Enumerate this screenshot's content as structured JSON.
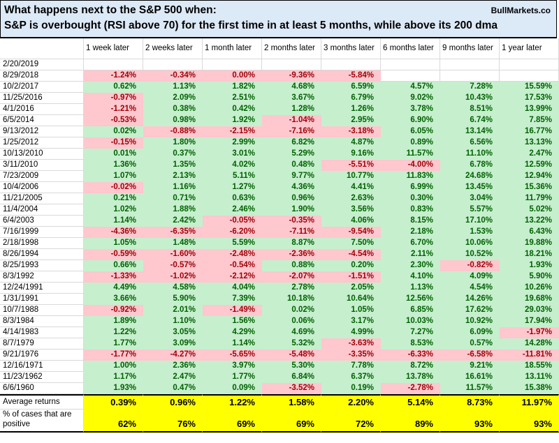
{
  "title": {
    "line1": "What happens next to the S&P 500 when:",
    "line2": "S&P is overbought (RSI above 70) for the first time in at least 5 months, while above its 200 dma",
    "brand": "BullMarkets.co"
  },
  "colors": {
    "positive_bg": "#C6EFCE",
    "positive_text": "#006100",
    "negative_bg": "#FFC7CE",
    "negative_text": "#9C0006",
    "summary_bg": "#FFFF00",
    "header_bg": "#DCE9F6",
    "gridline": "#D9D9D9",
    "border_black": "#000000"
  },
  "chart_data": {
    "type": "table",
    "title": "What happens next to the S&P 500 when:",
    "subtitle": "S&P is overbought (RSI above 70) for the first time in at least 5 months, while above its 200 dma",
    "source": "BullMarkets.co",
    "columns": [
      "1 week later",
      "2 weeks later",
      "1 month later",
      "2 months later",
      "3 months later",
      "6 months later",
      "9 months later",
      "1 year later"
    ],
    "rows": [
      {
        "date": "2/20/2019",
        "values": [
          "",
          "",
          "",
          "",
          "",
          "",
          "",
          ""
        ]
      },
      {
        "date": "8/29/2018",
        "values": [
          "-1.24%",
          "-0.34%",
          "0.00%",
          "-9.36%",
          "-5.84%",
          "",
          "",
          ""
        ]
      },
      {
        "date": "10/2/2017",
        "values": [
          "0.62%",
          "1.13%",
          "1.82%",
          "4.68%",
          "6.59%",
          "4.57%",
          "7.28%",
          "15.59%"
        ]
      },
      {
        "date": "11/25/2016",
        "values": [
          "-0.97%",
          "2.09%",
          "2.51%",
          "3.67%",
          "6.79%",
          "9.02%",
          "10.43%",
          "17.53%"
        ]
      },
      {
        "date": "4/1/2016",
        "values": [
          "-1.21%",
          "0.38%",
          "0.42%",
          "1.28%",
          "1.26%",
          "3.78%",
          "8.51%",
          "13.99%"
        ]
      },
      {
        "date": "6/5/2014",
        "values": [
          "-0.53%",
          "0.98%",
          "1.92%",
          "-1.04%",
          "2.95%",
          "6.90%",
          "6.74%",
          "7.85%"
        ]
      },
      {
        "date": "9/13/2012",
        "values": [
          "0.02%",
          "-0.88%",
          "-2.15%",
          "-7.16%",
          "-3.18%",
          "6.05%",
          "13.14%",
          "16.77%"
        ]
      },
      {
        "date": "1/25/2012",
        "values": [
          "-0.15%",
          "1.80%",
          "2.99%",
          "6.82%",
          "4.87%",
          "0.89%",
          "6.56%",
          "13.13%"
        ]
      },
      {
        "date": "10/13/2010",
        "values": [
          "0.01%",
          "0.37%",
          "3.01%",
          "5.29%",
          "9.16%",
          "11.57%",
          "11.10%",
          "2.47%"
        ]
      },
      {
        "date": "3/11/2010",
        "values": [
          "1.36%",
          "1.35%",
          "4.02%",
          "0.48%",
          "-5.51%",
          "-4.00%",
          "6.78%",
          "12.59%"
        ]
      },
      {
        "date": "7/23/2009",
        "values": [
          "1.07%",
          "2.13%",
          "5.11%",
          "9.77%",
          "10.77%",
          "11.83%",
          "24.68%",
          "12.94%"
        ]
      },
      {
        "date": "10/4/2006",
        "values": [
          "-0.02%",
          "1.16%",
          "1.27%",
          "4.36%",
          "4.41%",
          "6.99%",
          "13.45%",
          "15.36%"
        ]
      },
      {
        "date": "11/21/2005",
        "values": [
          "0.21%",
          "0.71%",
          "0.63%",
          "0.96%",
          "2.63%",
          "0.30%",
          "3.04%",
          "11.79%"
        ]
      },
      {
        "date": "11/4/2004",
        "values": [
          "1.02%",
          "1.88%",
          "2.46%",
          "1.90%",
          "3.56%",
          "0.83%",
          "5.57%",
          "5.02%"
        ]
      },
      {
        "date": "6/4/2003",
        "values": [
          "1.14%",
          "2.42%",
          "-0.05%",
          "-0.35%",
          "4.06%",
          "8.15%",
          "17.10%",
          "13.22%"
        ]
      },
      {
        "date": "7/16/1999",
        "values": [
          "-4.36%",
          "-6.35%",
          "-6.20%",
          "-7.11%",
          "-9.54%",
          "2.18%",
          "1.53%",
          "6.43%"
        ]
      },
      {
        "date": "2/18/1998",
        "values": [
          "1.05%",
          "1.48%",
          "5.59%",
          "8.87%",
          "7.50%",
          "6.70%",
          "10.06%",
          "19.88%"
        ]
      },
      {
        "date": "8/26/1994",
        "values": [
          "-0.59%",
          "-1.60%",
          "-2.48%",
          "-2.36%",
          "-4.54%",
          "2.11%",
          "10.52%",
          "18.21%"
        ]
      },
      {
        "date": "8/25/1993",
        "values": [
          "0.66%",
          "-0.57%",
          "-0.54%",
          "0.88%",
          "0.20%",
          "2.30%",
          "-0.82%",
          "1.93%"
        ]
      },
      {
        "date": "8/3/1992",
        "values": [
          "-1.33%",
          "-1.02%",
          "-2.12%",
          "-2.07%",
          "-1.51%",
          "4.10%",
          "4.09%",
          "5.90%"
        ]
      },
      {
        "date": "12/24/1991",
        "values": [
          "4.49%",
          "4.58%",
          "4.04%",
          "2.78%",
          "2.05%",
          "1.13%",
          "4.54%",
          "10.26%"
        ]
      },
      {
        "date": "1/31/1991",
        "values": [
          "3.66%",
          "5.90%",
          "7.39%",
          "10.18%",
          "10.64%",
          "12.56%",
          "14.26%",
          "19.68%"
        ]
      },
      {
        "date": "10/7/1988",
        "values": [
          "-0.92%",
          "2.01%",
          "-1.49%",
          "0.02%",
          "1.05%",
          "6.85%",
          "17.62%",
          "29.03%"
        ]
      },
      {
        "date": "8/3/1984",
        "values": [
          "1.89%",
          "1.10%",
          "1.56%",
          "0.06%",
          "3.17%",
          "10.03%",
          "10.92%",
          "17.94%"
        ]
      },
      {
        "date": "4/14/1983",
        "values": [
          "1.22%",
          "3.05%",
          "4.29%",
          "4.69%",
          "4.99%",
          "7.27%",
          "6.09%",
          "-1.97%"
        ]
      },
      {
        "date": "8/7/1979",
        "values": [
          "1.77%",
          "3.09%",
          "1.14%",
          "5.32%",
          "-3.63%",
          "8.53%",
          "0.57%",
          "14.28%"
        ]
      },
      {
        "date": "9/21/1976",
        "values": [
          "-1.77%",
          "-4.27%",
          "-5.65%",
          "-5.48%",
          "-3.35%",
          "-6.33%",
          "-6.58%",
          "-11.81%"
        ]
      },
      {
        "date": "12/16/1971",
        "values": [
          "1.00%",
          "2.36%",
          "3.97%",
          "5.30%",
          "7.78%",
          "8.72%",
          "9.21%",
          "18.55%"
        ]
      },
      {
        "date": "11/23/1962",
        "values": [
          "1.17%",
          "2.47%",
          "1.77%",
          "6.84%",
          "6.37%",
          "13.78%",
          "16.61%",
          "13.11%"
        ]
      },
      {
        "date": "6/6/1960",
        "values": [
          "1.93%",
          "0.47%",
          "0.09%",
          "-3.52%",
          "0.19%",
          "-2.78%",
          "11.57%",
          "15.38%"
        ]
      }
    ],
    "summary": {
      "average_label": "Average returns",
      "average_values": [
        "0.39%",
        "0.96%",
        "1.22%",
        "1.58%",
        "2.20%",
        "5.14%",
        "8.73%",
        "11.97%"
      ],
      "positive_label": "% of cases that are positive",
      "positive_values": [
        "62%",
        "76%",
        "69%",
        "69%",
        "72%",
        "89%",
        "93%",
        "93%"
      ]
    }
  }
}
